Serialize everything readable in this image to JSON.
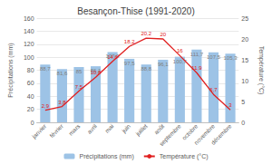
{
  "chart_data": {
    "type": "bar",
    "title": "Besançon-Thise (1991-2020)",
    "categories": [
      "janvier",
      "février",
      "mars",
      "avril",
      "mai",
      "juin",
      "juillet",
      "août",
      "septembre",
      "octobre",
      "novembre",
      "décembre"
    ],
    "series": [
      {
        "name": "Précipitations (mm)",
        "type": "bar",
        "color": "#9dc3e6",
        "values": [
          88.7,
          81.6,
          85,
          86.1,
          107.9,
          97.5,
          88.8,
          96.1,
          100.7,
          111.7,
          107.5,
          105.3
        ],
        "value_labels": [
          "88,7",
          "81,6",
          "85",
          "86,1",
          "107,9",
          "97,5",
          "88,8",
          "96,1",
          "100,7",
          "111,7",
          "107,5",
          "105,3"
        ]
      },
      {
        "name": "Température (°C)",
        "type": "line",
        "axis": "y2",
        "color": "#e02020",
        "values": [
          2.9,
          3.8,
          7.5,
          10.8,
          14.6,
          18.2,
          20.2,
          20,
          16,
          11.9,
          6.7,
          3
        ],
        "value_labels": [
          "2,9",
          "3,8",
          "7,5",
          "10,8",
          "14,6",
          "18,2",
          "20,2",
          "20",
          "16",
          "11,9",
          "6,7",
          "3"
        ]
      }
    ],
    "ylabel": "Précipitations (mm)",
    "y2label": "Température (°C)",
    "ylim": [
      0,
      160
    ],
    "yticks": [
      0,
      20,
      40,
      60,
      80,
      100,
      120,
      140,
      160
    ],
    "y2lim": [
      0,
      25
    ],
    "y2ticks": [
      0,
      5,
      10,
      15,
      20,
      25
    ],
    "grid": true,
    "legend": "bottom",
    "data_labels": true
  }
}
